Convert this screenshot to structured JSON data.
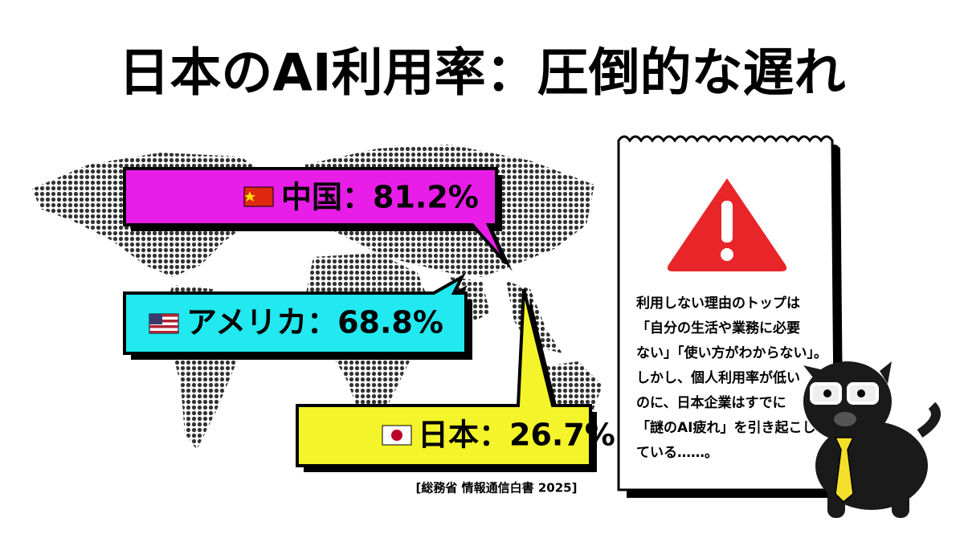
{
  "title": "日本のAI利用率：圧倒的な遅れ",
  "callouts": [
    {
      "text": "中国：81.2%"
    },
    {
      "text": "アメリカ：68.8%"
    },
    {
      "text": "日本：26.7%"
    }
  ],
  "note": {
    "lines": [
      "利用しない理由のトップは",
      "「自分の生活や業務に必要",
      "ない」「使い方がわからない」。",
      "しかし、個人利用率が低い",
      "のに、日本企業はすでに",
      "「謎のAI疲れ」を引き起こし",
      "ている……。"
    ]
  },
  "source": "[総務省 情報通信白書 2025]"
}
